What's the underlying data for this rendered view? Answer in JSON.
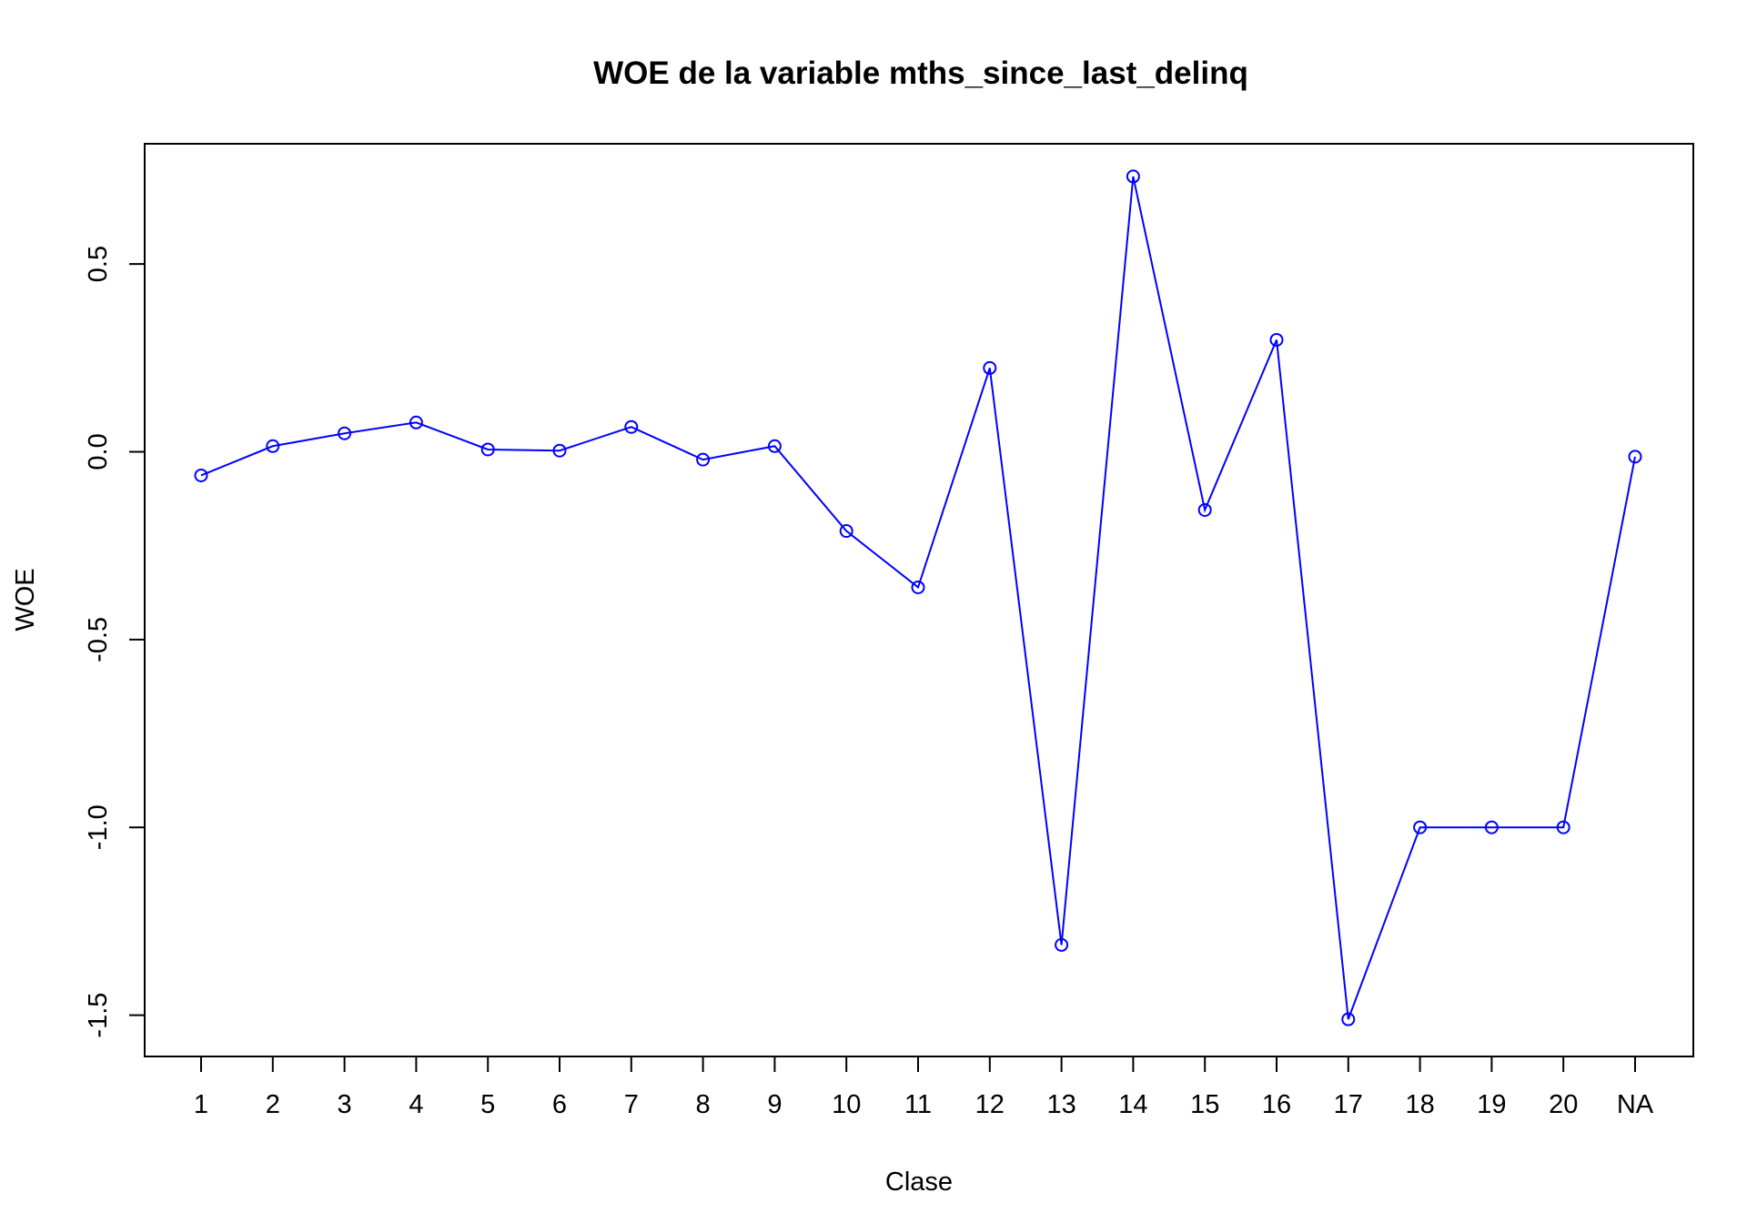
{
  "chart_data": {
    "type": "line",
    "title": "WOE de la variable mths_since_last_delinq",
    "xlabel": "Clase",
    "ylabel": "WOE",
    "categories": [
      "1",
      "2",
      "3",
      "4",
      "5",
      "6",
      "7",
      "8",
      "9",
      "10",
      "11",
      "12",
      "13",
      "14",
      "15",
      "16",
      "17",
      "18",
      "19",
      "20",
      "NA"
    ],
    "series": [
      {
        "values": [
          -0.063,
          0.015,
          0.049,
          0.078,
          0.006,
          0.003,
          0.066,
          -0.021,
          0.015,
          -0.211,
          -0.361,
          0.223,
          -1.313,
          0.733,
          -0.155,
          0.298,
          -1.511,
          -1.0,
          -1.0,
          -1.0,
          -0.013
        ],
        "color": "#0000ff"
      }
    ],
    "y_ticks": [
      0.5,
      0.0,
      -0.5,
      -1.0,
      -1.5
    ],
    "y_tick_labels": [
      "0.5",
      "0.0",
      "-0.5",
      "-1.0",
      "-1.5"
    ],
    "ylim": [
      -1.61,
      0.82
    ],
    "grid": false,
    "marker": "open-circle"
  }
}
